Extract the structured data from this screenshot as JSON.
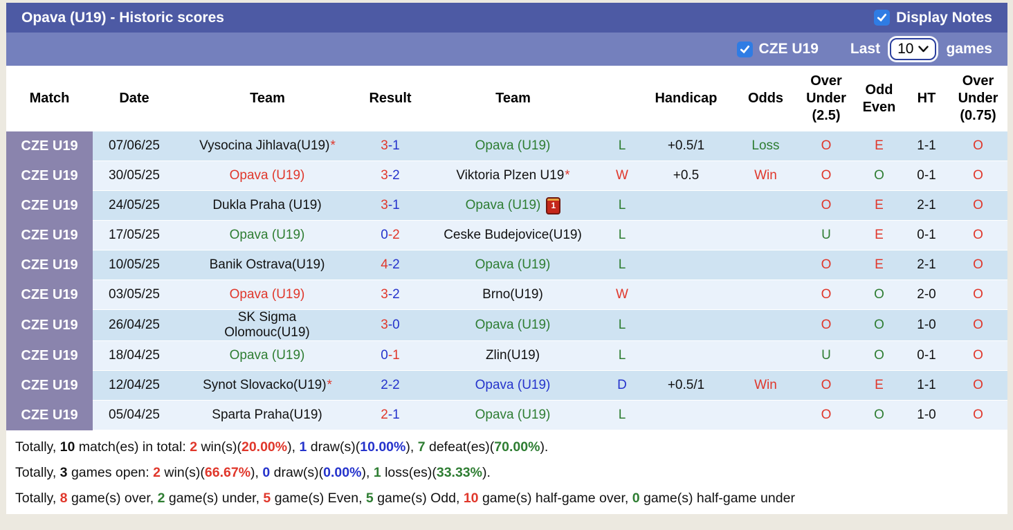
{
  "colors": {
    "red": "#e0372b",
    "green": "#2e7d32",
    "blue": "#2533cc",
    "black": "#111111"
  },
  "header": {
    "title": "Opava (U19) - Historic scores",
    "display_notes_label": "Display Notes",
    "display_notes_checked": true
  },
  "filter": {
    "league_label": "CZE U19",
    "league_checked": true,
    "last_label": "Last",
    "games_count": "10",
    "games_label": "games"
  },
  "table": {
    "headers": [
      "Match",
      "Date",
      "Team",
      "Result",
      "Team",
      "",
      "Handicap",
      "Odds",
      "Over Under\n(2.5)",
      "Odd\nEven",
      "HT",
      "Over Under\n(0.75)"
    ],
    "rows": [
      {
        "league": "CZE U19",
        "date": "07/06/25",
        "home": {
          "name": "Vysocina Jihlava(U19)",
          "star": "*",
          "color": "black"
        },
        "score": {
          "home": "3",
          "sep": "-",
          "away": "1",
          "home_color": "red",
          "away_color": "blue"
        },
        "away": {
          "name": "Opava (U19)",
          "star": "",
          "color": "green"
        },
        "outcome": {
          "text": "L",
          "color": "green"
        },
        "handicap": "+0.5/1",
        "odds": {
          "text": "Loss",
          "color": "green"
        },
        "ou25": {
          "text": "O",
          "color": "red"
        },
        "oddeven": {
          "text": "E",
          "color": "red"
        },
        "ht": "1-1",
        "ou075": {
          "text": "O",
          "color": "red"
        }
      },
      {
        "league": "CZE U19",
        "date": "30/05/25",
        "home": {
          "name": "Opava (U19)",
          "star": "",
          "color": "red"
        },
        "score": {
          "home": "3",
          "sep": "-",
          "away": "2",
          "home_color": "red",
          "away_color": "blue"
        },
        "away": {
          "name": "Viktoria Plzen U19",
          "star": "*",
          "color": "black"
        },
        "outcome": {
          "text": "W",
          "color": "red"
        },
        "handicap": "+0.5",
        "odds": {
          "text": "Win",
          "color": "red"
        },
        "ou25": {
          "text": "O",
          "color": "red"
        },
        "oddeven": {
          "text": "O",
          "color": "green"
        },
        "ht": "0-1",
        "ou075": {
          "text": "O",
          "color": "red"
        }
      },
      {
        "league": "CZE U19",
        "date": "24/05/25",
        "home": {
          "name": "Dukla Praha (U19)",
          "star": "",
          "color": "black"
        },
        "score": {
          "home": "3",
          "sep": "-",
          "away": "1",
          "home_color": "red",
          "away_color": "blue"
        },
        "away": {
          "name": "Opava (U19)",
          "star": "",
          "color": "green",
          "red_card_text": "1"
        },
        "outcome": {
          "text": "L",
          "color": "green"
        },
        "handicap": "",
        "odds": {
          "text": "",
          "color": "black"
        },
        "ou25": {
          "text": "O",
          "color": "red"
        },
        "oddeven": {
          "text": "E",
          "color": "red"
        },
        "ht": "2-1",
        "ou075": {
          "text": "O",
          "color": "red"
        }
      },
      {
        "league": "CZE U19",
        "date": "17/05/25",
        "home": {
          "name": "Opava (U19)",
          "star": "",
          "color": "green"
        },
        "score": {
          "home": "0",
          "sep": "-",
          "away": "2",
          "home_color": "blue",
          "away_color": "red"
        },
        "away": {
          "name": "Ceske Budejovice(U19)",
          "star": "",
          "color": "black"
        },
        "outcome": {
          "text": "L",
          "color": "green"
        },
        "handicap": "",
        "odds": {
          "text": "",
          "color": "black"
        },
        "ou25": {
          "text": "U",
          "color": "green"
        },
        "oddeven": {
          "text": "E",
          "color": "red"
        },
        "ht": "0-1",
        "ou075": {
          "text": "O",
          "color": "red"
        }
      },
      {
        "league": "CZE U19",
        "date": "10/05/25",
        "home": {
          "name": "Banik Ostrava(U19)",
          "star": "",
          "color": "black"
        },
        "score": {
          "home": "4",
          "sep": "-",
          "away": "2",
          "home_color": "red",
          "away_color": "blue"
        },
        "away": {
          "name": "Opava (U19)",
          "star": "",
          "color": "green"
        },
        "outcome": {
          "text": "L",
          "color": "green"
        },
        "handicap": "",
        "odds": {
          "text": "",
          "color": "black"
        },
        "ou25": {
          "text": "O",
          "color": "red"
        },
        "oddeven": {
          "text": "E",
          "color": "red"
        },
        "ht": "2-1",
        "ou075": {
          "text": "O",
          "color": "red"
        }
      },
      {
        "league": "CZE U19",
        "date": "03/05/25",
        "home": {
          "name": "Opava (U19)",
          "star": "",
          "color": "red"
        },
        "score": {
          "home": "3",
          "sep": "-",
          "away": "2",
          "home_color": "red",
          "away_color": "blue"
        },
        "away": {
          "name": "Brno(U19)",
          "star": "",
          "color": "black"
        },
        "outcome": {
          "text": "W",
          "color": "red"
        },
        "handicap": "",
        "odds": {
          "text": "",
          "color": "black"
        },
        "ou25": {
          "text": "O",
          "color": "red"
        },
        "oddeven": {
          "text": "O",
          "color": "green"
        },
        "ht": "2-0",
        "ou075": {
          "text": "O",
          "color": "red"
        }
      },
      {
        "league": "CZE U19",
        "date": "26/04/25",
        "home": {
          "name": "SK Sigma\nOlomouc(U19)",
          "star": "",
          "color": "black"
        },
        "score": {
          "home": "3",
          "sep": "-",
          "away": "0",
          "home_color": "red",
          "away_color": "blue"
        },
        "away": {
          "name": "Opava (U19)",
          "star": "",
          "color": "green"
        },
        "outcome": {
          "text": "L",
          "color": "green"
        },
        "handicap": "",
        "odds": {
          "text": "",
          "color": "black"
        },
        "ou25": {
          "text": "O",
          "color": "red"
        },
        "oddeven": {
          "text": "O",
          "color": "green"
        },
        "ht": "1-0",
        "ou075": {
          "text": "O",
          "color": "red"
        }
      },
      {
        "league": "CZE U19",
        "date": "18/04/25",
        "home": {
          "name": "Opava (U19)",
          "star": "",
          "color": "green"
        },
        "score": {
          "home": "0",
          "sep": "-",
          "away": "1",
          "home_color": "blue",
          "away_color": "red"
        },
        "away": {
          "name": "Zlin(U19)",
          "star": "",
          "color": "black"
        },
        "outcome": {
          "text": "L",
          "color": "green"
        },
        "handicap": "",
        "odds": {
          "text": "",
          "color": "black"
        },
        "ou25": {
          "text": "U",
          "color": "green"
        },
        "oddeven": {
          "text": "O",
          "color": "green"
        },
        "ht": "0-1",
        "ou075": {
          "text": "O",
          "color": "red"
        }
      },
      {
        "league": "CZE U19",
        "date": "12/04/25",
        "home": {
          "name": "Synot Slovacko(U19)",
          "star": "*",
          "color": "black"
        },
        "score": {
          "home": "2",
          "sep": "-",
          "away": "2",
          "home_color": "blue",
          "away_color": "blue"
        },
        "away": {
          "name": "Opava (U19)",
          "star": "",
          "color": "blue"
        },
        "outcome": {
          "text": "D",
          "color": "blue"
        },
        "handicap": "+0.5/1",
        "odds": {
          "text": "Win",
          "color": "red"
        },
        "ou25": {
          "text": "O",
          "color": "red"
        },
        "oddeven": {
          "text": "E",
          "color": "red"
        },
        "ht": "1-1",
        "ou075": {
          "text": "O",
          "color": "red"
        }
      },
      {
        "league": "CZE U19",
        "date": "05/04/25",
        "home": {
          "name": "Sparta Praha(U19)",
          "star": "",
          "color": "black"
        },
        "score": {
          "home": "2",
          "sep": "-",
          "away": "1",
          "home_color": "red",
          "away_color": "blue"
        },
        "away": {
          "name": "Opava (U19)",
          "star": "",
          "color": "green"
        },
        "outcome": {
          "text": "L",
          "color": "green"
        },
        "handicap": "",
        "odds": {
          "text": "",
          "color": "black"
        },
        "ou25": {
          "text": "O",
          "color": "red"
        },
        "oddeven": {
          "text": "O",
          "color": "green"
        },
        "ht": "1-0",
        "ou075": {
          "text": "O",
          "color": "red"
        }
      }
    ]
  },
  "summary": {
    "lines": [
      {
        "segments": [
          {
            "t": "Totally, "
          },
          {
            "t": "10",
            "c": "black",
            "b": true
          },
          {
            "t": " match(es) in total: "
          },
          {
            "t": "2",
            "c": "red",
            "b": true
          },
          {
            "t": " win(s)("
          },
          {
            "t": "20.00%",
            "c": "red",
            "b": true
          },
          {
            "t": "), "
          },
          {
            "t": "1",
            "c": "blue",
            "b": true
          },
          {
            "t": " draw(s)("
          },
          {
            "t": "10.00%",
            "c": "blue",
            "b": true
          },
          {
            "t": "), "
          },
          {
            "t": "7",
            "c": "green",
            "b": true
          },
          {
            "t": " defeat(es)("
          },
          {
            "t": "70.00%",
            "c": "green",
            "b": true
          },
          {
            "t": ")."
          }
        ]
      },
      {
        "segments": [
          {
            "t": "Totally, "
          },
          {
            "t": "3",
            "c": "black",
            "b": true
          },
          {
            "t": " games open: "
          },
          {
            "t": "2",
            "c": "red",
            "b": true
          },
          {
            "t": " win(s)("
          },
          {
            "t": "66.67%",
            "c": "red",
            "b": true
          },
          {
            "t": "), "
          },
          {
            "t": "0",
            "c": "blue",
            "b": true
          },
          {
            "t": " draw(s)("
          },
          {
            "t": "0.00%",
            "c": "blue",
            "b": true
          },
          {
            "t": "), "
          },
          {
            "t": "1",
            "c": "green",
            "b": true
          },
          {
            "t": " loss(es)("
          },
          {
            "t": "33.33%",
            "c": "green",
            "b": true
          },
          {
            "t": ")."
          }
        ]
      },
      {
        "segments": [
          {
            "t": "Totally, "
          },
          {
            "t": "8",
            "c": "red",
            "b": true
          },
          {
            "t": " game(s) over, "
          },
          {
            "t": "2",
            "c": "green",
            "b": true
          },
          {
            "t": " game(s) under, "
          },
          {
            "t": "5",
            "c": "red",
            "b": true
          },
          {
            "t": " game(s) Even, "
          },
          {
            "t": "5",
            "c": "green",
            "b": true
          },
          {
            "t": " game(s) Odd, "
          },
          {
            "t": "10",
            "c": "red",
            "b": true
          },
          {
            "t": " game(s) half-game over, "
          },
          {
            "t": "0",
            "c": "green",
            "b": true
          },
          {
            "t": " game(s) half-game under"
          }
        ]
      }
    ]
  }
}
